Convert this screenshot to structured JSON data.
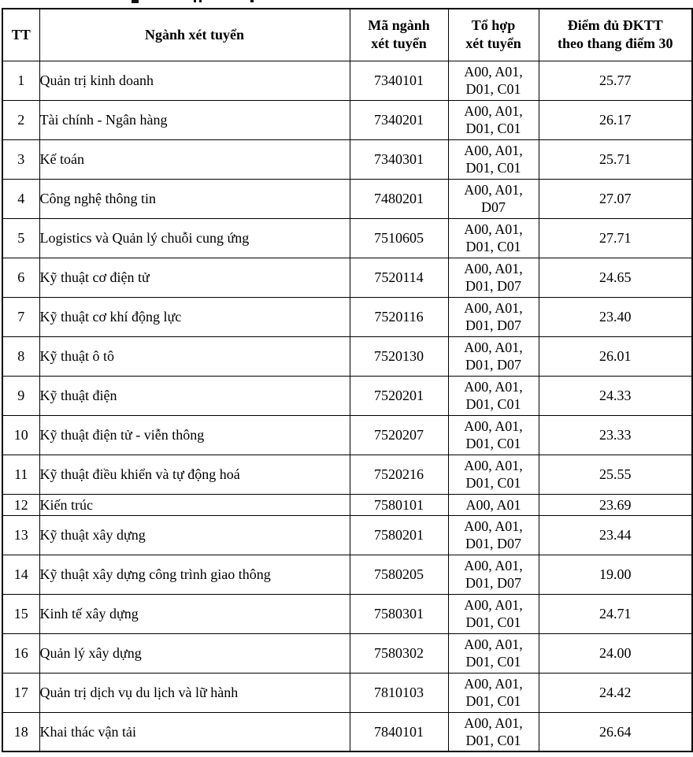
{
  "table": {
    "headers": [
      "TT",
      "Ngành xét tuyển",
      "Mã ngành\nxét tuyển",
      "Tổ hợp\nxét tuyển",
      "Điểm đủ ĐKTT\ntheo thang điểm 30"
    ],
    "rows": [
      {
        "tt": "1",
        "nganh": "Quản trị kinh doanh",
        "ma": "7340101",
        "tohop": "A00, A01,\nD01, C01",
        "diem": "25.77"
      },
      {
        "tt": "2",
        "nganh": "Tài chính - Ngân hàng",
        "ma": "7340201",
        "tohop": "A00, A01,\nD01, C01",
        "diem": "26.17"
      },
      {
        "tt": "3",
        "nganh": "Kế toán",
        "ma": "7340301",
        "tohop": "A00, A01,\nD01, C01",
        "diem": "25.71"
      },
      {
        "tt": "4",
        "nganh": "Công nghệ thông tin",
        "ma": "7480201",
        "tohop": "A00, A01,\nD07",
        "diem": "27.07"
      },
      {
        "tt": "5",
        "nganh": "Logistics và Quản lý chuỗi cung ứng",
        "ma": "7510605",
        "tohop": "A00, A01,\nD01, C01",
        "diem": "27.71"
      },
      {
        "tt": "6",
        "nganh": "Kỹ thuật cơ điện tử",
        "ma": "7520114",
        "tohop": "A00, A01,\nD01, D07",
        "diem": "24.65"
      },
      {
        "tt": "7",
        "nganh": "Kỹ thuật cơ khí động lực",
        "ma": "7520116",
        "tohop": "A00, A01,\nD01, D07",
        "diem": "23.40"
      },
      {
        "tt": "8",
        "nganh": "Kỹ thuật ô tô",
        "ma": "7520130",
        "tohop": "A00, A01,\nD01, D07",
        "diem": "26.01"
      },
      {
        "tt": "9",
        "nganh": "Kỹ thuật điện",
        "ma": "7520201",
        "tohop": "A00, A01,\nD01, C01",
        "diem": "24.33"
      },
      {
        "tt": "10",
        "nganh": "Kỹ thuật điện tử - viễn thông",
        "ma": "7520207",
        "tohop": "A00, A01,\nD01, C01",
        "diem": "23.33"
      },
      {
        "tt": "11",
        "nganh": "Kỹ thuật điều khiển và tự động hoá",
        "ma": "7520216",
        "tohop": "A00, A01,\nD01, C01",
        "diem": "25.55"
      },
      {
        "tt": "12",
        "nganh": "Kiến trúc",
        "ma": "7580101",
        "tohop": "A00, A01",
        "diem": "23.69"
      },
      {
        "tt": "13",
        "nganh": "Kỹ thuật xây dựng",
        "ma": "7580201",
        "tohop": "A00, A01,\nD01, D07",
        "diem": "23.44"
      },
      {
        "tt": "14",
        "nganh": "Kỹ thuật xây dựng công trình giao thông",
        "ma": "7580205",
        "tohop": "A00, A01,\nD01, D07",
        "diem": "19.00"
      },
      {
        "tt": "15",
        "nganh": "Kinh tế xây dựng",
        "ma": "7580301",
        "tohop": "A00, A01,\nD01, C01",
        "diem": "24.71"
      },
      {
        "tt": "16",
        "nganh": "Quản lý xây dựng",
        "ma": "7580302",
        "tohop": "A00, A01,\nD01, C01",
        "diem": "24.00"
      },
      {
        "tt": "17",
        "nganh": "Quản trị dịch vụ du lịch và lữ hành",
        "ma": "7810103",
        "tohop": "A00, A01,\nD01, C01",
        "diem": "24.42"
      },
      {
        "tt": "18",
        "nganh": "Khai thác vận tải",
        "ma": "7840101",
        "tohop": "A00, A01,\nD01, C01",
        "diem": "26.64"
      }
    ]
  }
}
